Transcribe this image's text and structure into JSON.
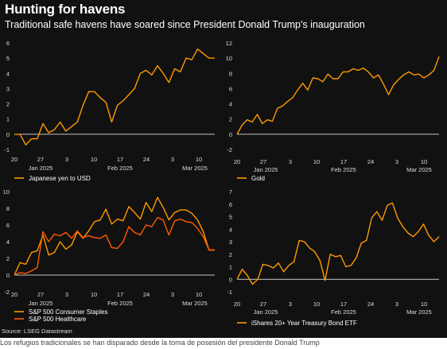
{
  "header": {
    "title": "Hunting for havens",
    "subtitle": "Traditional safe havens have soared since President Donald Trump's inauguration"
  },
  "footer": {
    "source": "Source: LSEG Datastream",
    "caption": "Los refugios tradicionales se han disparado desde la toma de posesión del presidente Donald Trump"
  },
  "colors": {
    "background": "#111111",
    "text": "#ffffff",
    "axis_text": "#dddddd",
    "zero_line": "#ffffff",
    "series_primary": "#ff9900",
    "series_secondary": "#ff5a00"
  },
  "chart_data": [
    {
      "type": "line",
      "title": "",
      "xlabel": "",
      "ylabel": "",
      "x_ticks": [
        "20",
        "27",
        "3",
        "10",
        "17",
        "24",
        "3",
        "10"
      ],
      "month_labels": [
        "Jan 2025",
        "Feb 2025",
        "Mar 2025"
      ],
      "ylim": [
        -1,
        6
      ],
      "yticks": [
        -1,
        0,
        1,
        2,
        3,
        4,
        5,
        6
      ],
      "grid": false,
      "legend": "bottom-left",
      "series": [
        {
          "name": "Japanese yen to USD",
          "color": "#ff9900",
          "values": [
            0.0,
            0.0,
            -0.7,
            -0.3,
            -0.3,
            0.7,
            0.1,
            0.3,
            0.8,
            0.2,
            0.5,
            0.8,
            1.9,
            2.8,
            2.8,
            2.4,
            2.1,
            0.8,
            1.9,
            2.2,
            2.6,
            3.0,
            4.0,
            4.2,
            3.9,
            4.5,
            4.0,
            3.4,
            4.3,
            4.1,
            5.0,
            4.9,
            5.6,
            5.3,
            5.0,
            5.0
          ]
        }
      ]
    },
    {
      "type": "line",
      "title": "",
      "xlabel": "",
      "ylabel": "",
      "x_ticks": [
        "20",
        "27",
        "3",
        "10",
        "17",
        "24",
        "3",
        "10"
      ],
      "month_labels": [
        "Jan 2025",
        "Feb 2025",
        "Mar 2025"
      ],
      "ylim": [
        -2,
        12
      ],
      "yticks": [
        -2,
        0,
        2,
        4,
        6,
        8,
        10,
        12
      ],
      "grid": false,
      "legend": "bottom-left",
      "series": [
        {
          "name": "Gold",
          "color": "#ff9900",
          "values": [
            0.0,
            1.2,
            1.9,
            1.6,
            2.6,
            1.4,
            1.9,
            1.7,
            3.4,
            3.7,
            4.3,
            4.8,
            5.8,
            6.7,
            5.8,
            7.4,
            7.3,
            6.9,
            7.9,
            7.3,
            7.3,
            8.2,
            8.2,
            8.6,
            8.4,
            8.7,
            8.2,
            7.4,
            7.8,
            6.6,
            5.2,
            6.5,
            7.2,
            7.8,
            8.2,
            7.8,
            7.9,
            7.4,
            7.8,
            8.4,
            10.2
          ]
        }
      ]
    },
    {
      "type": "line",
      "title": "",
      "xlabel": "",
      "ylabel": "",
      "x_ticks": [
        "20",
        "27",
        "3",
        "10",
        "17",
        "24",
        "3",
        "10"
      ],
      "month_labels": [
        "Jan 2025",
        "Feb 2025",
        "Mar 2025"
      ],
      "ylim": [
        -2,
        10
      ],
      "yticks": [
        -2,
        0,
        2,
        4,
        6,
        8,
        10
      ],
      "grid": false,
      "legend": "bottom-left",
      "series": [
        {
          "name": "S&P 500 Consumer Staples",
          "color": "#ff9900",
          "values": [
            0.0,
            1.5,
            1.3,
            2.7,
            2.9,
            4.8,
            2.4,
            2.7,
            4.0,
            3.1,
            3.6,
            5.2,
            4.4,
            5.3,
            6.4,
            6.6,
            7.9,
            6.1,
            6.7,
            6.5,
            8.2,
            7.5,
            6.7,
            8.7,
            7.6,
            9.3,
            8.1,
            6.6,
            7.5,
            7.8,
            7.8,
            7.4,
            6.6,
            5.2,
            3.0,
            3.0
          ]
        },
        {
          "name": "S&P 500 Healthcare",
          "color": "#ff5a00",
          "values": [
            0.0,
            0.3,
            0.2,
            0.5,
            0.9,
            5.2,
            4.0,
            4.9,
            4.7,
            5.1,
            4.4,
            5.3,
            4.5,
            4.7,
            4.5,
            4.4,
            4.8,
            3.3,
            3.2,
            4.0,
            5.8,
            5.1,
            4.8,
            6.0,
            5.8,
            6.9,
            6.6,
            4.8,
            6.5,
            6.7,
            6.4,
            6.3,
            5.6,
            4.6,
            3.0,
            3.0
          ]
        }
      ]
    },
    {
      "type": "line",
      "title": "",
      "xlabel": "",
      "ylabel": "",
      "x_ticks": [
        "20",
        "27",
        "3",
        "10",
        "17",
        "24",
        "3",
        "10"
      ],
      "month_labels": [
        "Jan 2025",
        "Feb 2025",
        "Mar 2025"
      ],
      "ylim": [
        -1,
        7
      ],
      "yticks": [
        -1,
        0,
        1,
        2,
        3,
        4,
        5,
        6,
        7
      ],
      "grid": false,
      "legend": "bottom-left",
      "series": [
        {
          "name": "iShares 20+ Year Treasury Bond ETF",
          "color": "#ff9900",
          "values": [
            0.0,
            0.8,
            0.3,
            -0.4,
            0.0,
            1.2,
            1.1,
            0.9,
            1.3,
            0.6,
            1.1,
            1.4,
            3.1,
            3.0,
            2.5,
            2.2,
            1.5,
            -0.1,
            2.0,
            1.8,
            1.9,
            1.0,
            1.1,
            1.7,
            2.9,
            3.1,
            4.9,
            5.4,
            4.7,
            5.9,
            6.1,
            4.9,
            4.2,
            3.7,
            3.4,
            3.8,
            4.4,
            3.5,
            3.0,
            3.4
          ]
        }
      ]
    }
  ]
}
